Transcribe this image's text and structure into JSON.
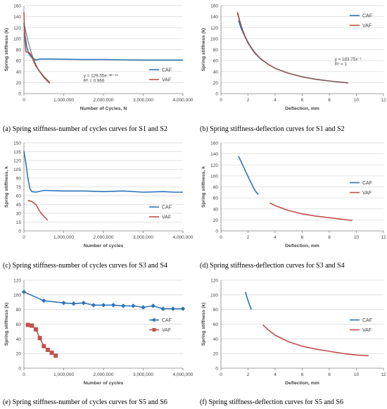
{
  "colors": {
    "caf": "#2e74b5",
    "vaf": "#c0504d",
    "fit": "#595959",
    "grid": "#d9d9d9",
    "axis": "#808080"
  },
  "charts": [
    {
      "id": "a",
      "caption": "(a) Spring stiffness-number of cycles curves for S1 and S2",
      "chart_data": {
        "type": "line",
        "xlabel": "Number of Cycles, N",
        "ylabel": "Spring stiffness (k)",
        "xlim": [
          0,
          4000000
        ],
        "ylim": [
          0,
          160
        ],
        "xticks": [
          0,
          1000000,
          2000000,
          3000000,
          4000000
        ],
        "xtick_labels": [
          "0",
          "1,000,000",
          "2,000,000",
          "3,000,000",
          "4,000,000"
        ],
        "yticks": [
          0,
          20,
          40,
          60,
          80,
          100,
          120,
          140,
          160
        ],
        "grid": "horizontal",
        "legend_position": "lower-right",
        "markers": false,
        "series": [
          {
            "name": "CAF",
            "color_key": "caf",
            "x": [
              0,
              30000,
              70000,
              120000,
              200000,
              300000,
              400000,
              600000,
              1000000,
              1500000,
              2000000,
              2500000,
              3000000,
              3500000,
              4000000
            ],
            "y": [
              128,
              105,
              85,
              73,
              65,
              61,
              63,
              63,
              62.5,
              62,
              62,
              61.5,
              61,
              61,
              61
            ]
          },
          {
            "name": "VAF",
            "color_key": "vaf",
            "x": [
              0,
              20000,
              50000,
              100000,
              150000,
              200000,
              250000,
              300000,
              400000,
              500000,
              600000,
              650000
            ],
            "y": [
              148,
              100,
              76,
              75,
              74,
              67,
              58,
              50,
              40,
              31,
              24,
              20
            ]
          },
          {
            "name": "",
            "color_key": "fit",
            "style": "fit",
            "x": [
              0,
              100000,
              200000,
              300000,
              400000,
              500000,
              600000,
              650000
            ],
            "y": [
              129.55,
              96,
              71,
              53,
              39,
              29,
              21.5,
              18.5
            ]
          }
        ],
        "annotations": [
          "y = 129.55e⁻³ᴱ⁻⁶ˣ",
          "R² = 0.966"
        ],
        "annotation_xy": [
          [
            1500000,
            30
          ],
          [
            1500000,
            21
          ]
        ]
      }
    },
    {
      "id": "b",
      "caption": "(b) Spring stiffness-deflection curves for S1 and S2",
      "chart_data": {
        "type": "line",
        "xlabel": "Deflection, mm",
        "ylabel": "Spring stiffness (k)",
        "xlim": [
          0,
          12
        ],
        "ylim": [
          0,
          160
        ],
        "xticks": [
          0,
          2,
          4,
          6,
          8,
          10,
          12
        ],
        "xtick_labels": [
          "0",
          "2",
          "4",
          "6",
          "8",
          "10",
          "12"
        ],
        "yticks": [
          0,
          20,
          40,
          60,
          80,
          100,
          120,
          140,
          160
        ],
        "grid": "horizontal",
        "legend_position": "upper-right",
        "markers": false,
        "series": [
          {
            "name": "CAF",
            "color_key": "caf",
            "x": [
              1.3,
              1.5,
              1.8,
              2.1,
              2.4,
              2.7,
              3.0
            ],
            "y": [
              133,
              118,
              102,
              89,
              78,
              69,
              62
            ]
          },
          {
            "name": "VAF",
            "color_key": "vaf",
            "x": [
              1.2,
              1.4,
              1.7,
              2.0,
              2.4,
              2.8,
              3.5,
              4.0,
              5.0,
              6.0,
              7.0,
              8.0,
              9.4
            ],
            "y": [
              148,
              131,
              108,
              92,
              77,
              66,
              53,
              46,
              37,
              30.5,
              26,
              23,
              19.5
            ]
          },
          {
            "name": "",
            "color_key": "fit",
            "style": "fit",
            "x": [
              1.25,
              1.5,
              2.0,
              2.5,
              3.0,
              4.0,
              5.0,
              6.0,
              7.0,
              8.0,
              9.4
            ],
            "y": [
              147,
              122.5,
              92,
              73.5,
              61.3,
              46,
              36.8,
              30.6,
              26.3,
              23,
              19.5
            ]
          }
        ],
        "annotations": [
          "y = 183.75x⁻¹",
          "R² = 1"
        ],
        "annotation_xy": [
          [
            8.4,
            60
          ],
          [
            8.4,
            51
          ]
        ]
      }
    },
    {
      "id": "c",
      "caption": "(c) Spring stiffness-number of cycles curves for S3 and S4",
      "chart_data": {
        "type": "line",
        "xlabel": "Number of cycles",
        "ylabel": "Spring stiffness, k",
        "xlim": [
          0,
          4000000
        ],
        "ylim": [
          0,
          150
        ],
        "xticks": [
          0,
          1000000,
          2000000,
          3000000,
          4000000
        ],
        "xtick_labels": [
          "0",
          "1,000,000",
          "2,000,000",
          "3,000,000",
          "4,000,000"
        ],
        "yticks": [
          0,
          15,
          30,
          45,
          60,
          75,
          90,
          105,
          120,
          135,
          150
        ],
        "grid": "horizontal",
        "legend_position": "lower-right",
        "markers": false,
        "series": [
          {
            "name": "CAF",
            "color_key": "caf",
            "x": [
              0,
              50000,
              100000,
              150000,
              200000,
              300000,
              500000,
              1000000,
              1500000,
              2000000,
              2500000,
              3000000,
              3500000,
              3800000,
              4000000
            ],
            "y": [
              136,
              115,
              90,
              72,
              67,
              66,
              69,
              68,
              68,
              67,
              68,
              66,
              67,
              66,
              66
            ]
          },
          {
            "name": "VAF",
            "color_key": "vaf",
            "x": [
              100000,
              200000,
              300000,
              400000,
              500000,
              600000
            ],
            "y": [
              52,
              50,
              45,
              33,
              25,
              18
            ]
          }
        ]
      }
    },
    {
      "id": "d",
      "caption": "(d) Spring stiffness-deflection curves for S3 and S4",
      "chart_data": {
        "type": "line",
        "xlabel": "Deflection, mm",
        "ylabel": "Spring stiffness, k",
        "xlim": [
          0,
          12
        ],
        "ylim": [
          0,
          160
        ],
        "xticks": [
          0,
          2,
          4,
          6,
          8,
          10,
          12
        ],
        "xtick_labels": [
          "0",
          "2",
          "4",
          "6",
          "8",
          "10",
          "12"
        ],
        "yticks": [
          0,
          20,
          40,
          60,
          80,
          100,
          120,
          140,
          160
        ],
        "grid": "horizontal",
        "legend_position": "right",
        "markers": false,
        "series": [
          {
            "name": "CAF",
            "color_key": "caf",
            "x": [
              1.3,
              1.6,
              1.9,
              2.2,
              2.5,
              2.75
            ],
            "y": [
              136,
              120,
              104,
              89,
              74,
              66
            ]
          },
          {
            "name": "VAF",
            "color_key": "vaf",
            "x": [
              3.6,
              4.0,
              5.0,
              6.0,
              7.0,
              8.0,
              9.0,
              9.7
            ],
            "y": [
              51,
              46,
              37,
              31,
              27,
              24,
              21,
              19
            ]
          }
        ]
      }
    },
    {
      "id": "e",
      "caption": "(e) Spring stiffness-number of cycles curves for S5 and S6",
      "chart_data": {
        "type": "line",
        "xlabel": "Number of cycles",
        "ylabel": "Spring stiffness (k)",
        "xlim": [
          0,
          4000000
        ],
        "ylim": [
          0,
          120
        ],
        "xticks": [
          0,
          1000000,
          2000000,
          3000000,
          4000000
        ],
        "xtick_labels": [
          "0",
          "1,000,000",
          "2,000,000",
          "3,000,000",
          "4,000,000"
        ],
        "yticks": [
          0,
          20,
          40,
          60,
          80,
          100,
          120
        ],
        "grid": "horizontal",
        "legend_position": "right",
        "markers": true,
        "series": [
          {
            "name": "CAF",
            "color_key": "caf",
            "marker": "diamond",
            "x": [
              0,
              500000,
              1000000,
              1250000,
              1500000,
              1750000,
              2000000,
              2250000,
              2500000,
              2750000,
              3000000,
              3250000,
              3500000,
              3750000,
              4000000
            ],
            "y": [
              104,
              92,
              89,
              88,
              89,
              86,
              86,
              86,
              85,
              85,
              83,
              85,
              81,
              81,
              81
            ]
          },
          {
            "name": "VAF",
            "color_key": "vaf",
            "marker": "square",
            "x": [
              100000,
              200000,
              300000,
              400000,
              500000,
              600000,
              700000,
              800000
            ],
            "y": [
              59,
              58,
              53,
              41,
              30,
              25,
              21,
              17
            ]
          }
        ]
      }
    },
    {
      "id": "f",
      "caption": "(f) Spring stiffness-deflection curves for S5 and S6",
      "chart_data": {
        "type": "line",
        "xlabel": "Deflection, mm",
        "ylabel": "Spring stiffness (k)",
        "xlim": [
          0,
          12
        ],
        "ylim": [
          0,
          120
        ],
        "xticks": [
          0,
          2,
          4,
          6,
          8,
          10,
          12
        ],
        "xtick_labels": [
          "0",
          "2",
          "4",
          "6",
          "8",
          "10",
          "12"
        ],
        "yticks": [
          0,
          20,
          40,
          60,
          80,
          100,
          120
        ],
        "grid": "horizontal",
        "legend_position": "right",
        "markers": false,
        "series": [
          {
            "name": "CAF",
            "color_key": "caf",
            "x": [
              1.8,
              1.95,
              2.1,
              2.25
            ],
            "y": [
              104,
              95,
              87,
              80
            ]
          },
          {
            "name": "VAF",
            "color_key": "vaf",
            "x": [
              3.1,
              3.5,
              4.0,
              5.0,
              6.0,
              7.0,
              8.0,
              9.0,
              10.0,
              10.9
            ],
            "y": [
              59,
              52,
              45,
              36,
              30,
              26,
              23,
              20,
              18,
              17
            ]
          }
        ]
      }
    }
  ]
}
